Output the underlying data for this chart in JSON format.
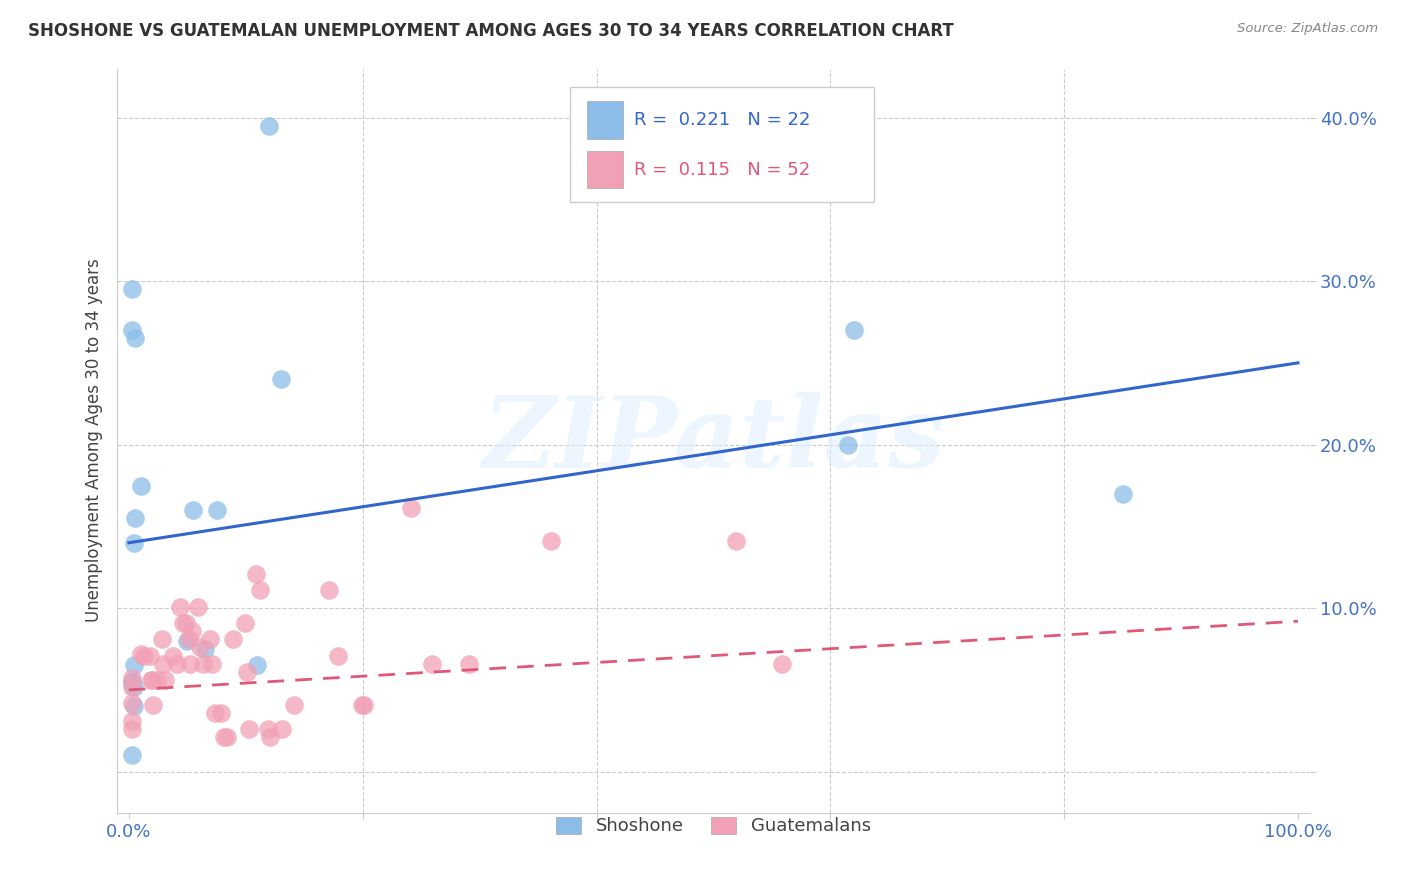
{
  "title": "SHOSHONE VS GUATEMALAN UNEMPLOYMENT AMONG AGES 30 TO 34 YEARS CORRELATION CHART",
  "source": "Source: ZipAtlas.com",
  "ylabel": "Unemployment Among Ages 30 to 34 years",
  "xlim": [
    -0.01,
    1.01
  ],
  "ylim": [
    -0.025,
    0.43
  ],
  "xticks": [
    0.0,
    0.2,
    0.4,
    0.6,
    0.8,
    1.0
  ],
  "xticklabels": [
    "0.0%",
    "",
    "",
    "",
    "",
    "100.0%"
  ],
  "ytick_vals": [
    0.0,
    0.1,
    0.2,
    0.3,
    0.4
  ],
  "ytick_labels": [
    "",
    "10.0%",
    "20.0%",
    "30.0%",
    "40.0%"
  ],
  "background_color": "#ffffff",
  "grid_color": "#cccccc",
  "shoshone_color": "#8BBDE8",
  "guatemalan_color": "#F2A0B5",
  "shoshone_line_color": "#3366CC",
  "guatemalan_line_color": "#E05878",
  "tick_color": "#4472C4",
  "shoshone_R": 0.221,
  "shoshone_N": 22,
  "guatemalan_R": 0.115,
  "guatemalan_N": 52,
  "legend_label_shoshone": "Shoshone",
  "legend_label_guatemalan": "Guatemalans",
  "shoshone_x": [
    0.003,
    0.12,
    0.003,
    0.005,
    0.01,
    0.055,
    0.075,
    0.005,
    0.004,
    0.05,
    0.065,
    0.004,
    0.11,
    0.003,
    0.004,
    0.62,
    0.615,
    0.85,
    0.003,
    0.004,
    0.003,
    0.13
  ],
  "shoshone_y": [
    0.295,
    0.395,
    0.27,
    0.265,
    0.175,
    0.16,
    0.16,
    0.155,
    0.14,
    0.08,
    0.075,
    0.065,
    0.065,
    0.055,
    0.052,
    0.27,
    0.2,
    0.17,
    0.055,
    0.04,
    0.01,
    0.24
  ],
  "guatemalan_x": [
    0.003,
    0.003,
    0.003,
    0.003,
    0.003,
    0.01,
    0.013,
    0.018,
    0.019,
    0.02,
    0.021,
    0.024,
    0.028,
    0.029,
    0.031,
    0.038,
    0.041,
    0.044,
    0.046,
    0.049,
    0.051,
    0.052,
    0.054,
    0.059,
    0.061,
    0.063,
    0.069,
    0.071,
    0.074,
    0.079,
    0.081,
    0.084,
    0.089,
    0.099,
    0.101,
    0.103,
    0.109,
    0.112,
    0.119,
    0.121,
    0.131,
    0.141,
    0.171,
    0.179,
    0.199,
    0.201,
    0.241,
    0.259,
    0.291,
    0.361,
    0.519,
    0.559
  ],
  "guatemalan_y": [
    0.057,
    0.052,
    0.042,
    0.031,
    0.026,
    0.072,
    0.071,
    0.071,
    0.056,
    0.056,
    0.041,
    0.056,
    0.081,
    0.066,
    0.056,
    0.071,
    0.066,
    0.101,
    0.091,
    0.091,
    0.081,
    0.066,
    0.086,
    0.101,
    0.076,
    0.066,
    0.081,
    0.066,
    0.036,
    0.036,
    0.021,
    0.021,
    0.081,
    0.091,
    0.061,
    0.026,
    0.121,
    0.111,
    0.026,
    0.021,
    0.026,
    0.041,
    0.111,
    0.071,
    0.041,
    0.041,
    0.161,
    0.066,
    0.066,
    0.141,
    0.141,
    0.066
  ],
  "shoshone_trend_x": [
    0.0,
    1.0
  ],
  "shoshone_trend_y": [
    0.14,
    0.25
  ],
  "guatemalan_trend_x": [
    0.0,
    1.0
  ],
  "guatemalan_trend_y": [
    0.05,
    0.092
  ],
  "watermark": "ZIPatlas",
  "watermark_color": "#DDEEFF"
}
